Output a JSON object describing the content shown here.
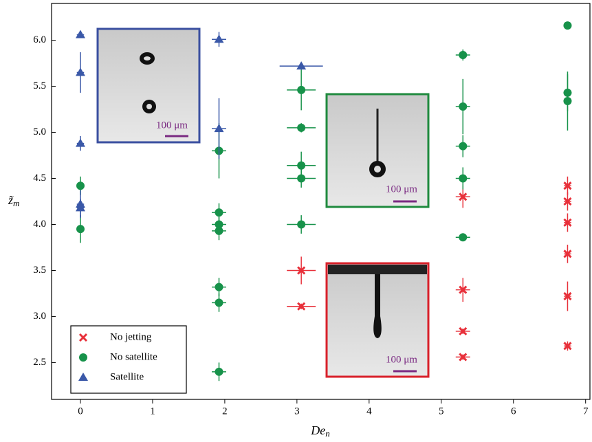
{
  "chart_data": {
    "type": "scatter",
    "xlabel": "De",
    "xlabel_sub": "n",
    "ylabel": "z̃",
    "ylabel_sub": "m",
    "xlim": [
      -0.4,
      7.06
    ],
    "ylim": [
      2.1,
      6.4
    ],
    "xticks": [
      0,
      1,
      2,
      3,
      4,
      5,
      6,
      7
    ],
    "yticks": [
      2.5,
      {
        "value": 3,
        "label": "3.0"
      },
      3.5,
      {
        "value": 4,
        "label": "4.0"
      },
      4.5,
      {
        "value": 5,
        "label": "5.0"
      },
      5.5,
      {
        "value": 6,
        "label": "6.0"
      }
    ],
    "legend": "bottom-left",
    "series": [
      {
        "name": "No jetting",
        "color": "#e8303a",
        "marker": "x",
        "x": [
          3.06,
          3.06,
          5.3,
          5.3,
          5.3,
          5.3,
          6.75,
          6.75,
          6.75,
          6.75,
          6.75,
          6.75
        ],
        "values": [
          3.5,
          3.11,
          4.3,
          3.29,
          2.84,
          2.56,
          4.42,
          4.25,
          4.02,
          3.68,
          3.22,
          2.68
        ],
        "yerr": [
          0.15,
          0.03,
          0.12,
          0.13,
          0.03,
          0.03,
          0.1,
          0.1,
          0.1,
          0.1,
          0.16,
          0.05
        ],
        "xerr": [
          0.2,
          0.2,
          0.1,
          0.1,
          0.1,
          0.1,
          0.05,
          0.05,
          0.05,
          0.05,
          0.05,
          0.05
        ]
      },
      {
        "name": "No satellite",
        "color": "#17924a",
        "marker": "circle",
        "x": [
          0,
          0,
          1.92,
          1.92,
          1.92,
          1.92,
          1.92,
          1.92,
          1.92,
          3.06,
          3.06,
          3.06,
          3.06,
          3.06,
          5.3,
          5.3,
          5.3,
          5.3,
          5.3,
          6.75,
          6.75,
          6.75
        ],
        "values": [
          4.42,
          3.95,
          4.8,
          4.13,
          4.0,
          3.93,
          3.32,
          3.15,
          2.4,
          5.46,
          5.05,
          4.64,
          4.5,
          4.0,
          5.84,
          5.28,
          4.85,
          4.5,
          3.86,
          6.16,
          5.43,
          5.34
        ],
        "yerr": [
          0.1,
          0.15,
          0.3,
          0.1,
          0.08,
          0.1,
          0.1,
          0.1,
          0.1,
          0.22,
          0.05,
          0.15,
          0.1,
          0.1,
          0.06,
          0.3,
          0.12,
          0.12,
          0.03,
          0,
          0.2,
          0.32
        ],
        "xerr": [
          0.05,
          0.05,
          0.1,
          0.1,
          0.1,
          0.1,
          0.1,
          0.1,
          0.1,
          0.2,
          0.2,
          0.2,
          0.2,
          0.2,
          0.1,
          0.1,
          0.1,
          0.1,
          0.1,
          0,
          0.05,
          0.05
        ]
      },
      {
        "name": "Satellite",
        "color": "#3a58a8",
        "marker": "triangle",
        "x": [
          0,
          0,
          0,
          0,
          0,
          1.92,
          1.92,
          3.06
        ],
        "values": [
          6.06,
          5.65,
          4.88,
          4.22,
          4.18,
          6.01,
          5.04,
          5.72
        ],
        "yerr": [
          0.03,
          0.22,
          0.08,
          0.15,
          0.1,
          0.08,
          0.33,
          0.04
        ],
        "xerr": [
          0.05,
          0.05,
          0.05,
          0.05,
          0.05,
          0.1,
          0.1,
          0.3
        ]
      }
    ],
    "insets": [
      {
        "scale_label": "100 μm"
      },
      {
        "scale_label": "100 μm"
      },
      {
        "scale_label": "100 μm"
      }
    ]
  }
}
